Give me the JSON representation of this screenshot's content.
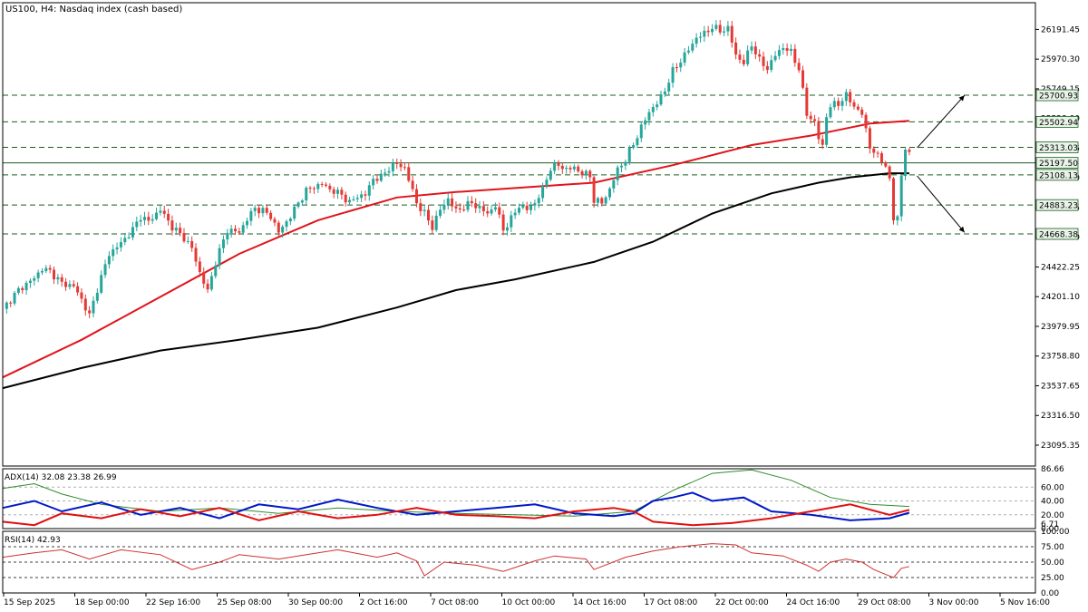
{
  "header": {
    "title": "US100, H4:  Nasdaq index (cash based)"
  },
  "colors": {
    "bull": "#26a69a",
    "bear": "#e53935",
    "ma_red": "#e0141c",
    "ma_black": "#000000",
    "adx": "#2e8b2e",
    "plus_di": "#0018c8",
    "minus_di": "#e01010",
    "rsi": "#d03030",
    "hline": "#1b5e20",
    "tag_bg": "#e8f3e8",
    "grid": "#808080"
  },
  "indicators": {
    "adx_label": "ADX(14) 32.08 23.38 26.99",
    "rsi_label": "RSI(14) 42.93"
  },
  "chart_data": [
    {
      "type": "candlestick",
      "title": "US100, H4:  Nasdaq index (cash based)",
      "ylim": [
        22940,
        26390
      ],
      "y_ticks": [
        "26191.45",
        "25970.30",
        "25749.15",
        "25528.00",
        "25306.85",
        "25085.70",
        "24864.55",
        "24643.40",
        "24422.25",
        "24201.10",
        "23979.95",
        "23758.80",
        "23537.65",
        "23316.50",
        "23095.35"
      ],
      "x_ticks": [
        "15 Sep 2025",
        "18 Sep 00:00",
        "22 Sep 16:00",
        "25 Sep 08:00",
        "30 Sep 00:00",
        "2 Oct 16:00",
        "7 Oct 08:00",
        "10 Oct 00:00",
        "14 Oct 16:00",
        "17 Oct 08:00",
        "22 Oct 00:00",
        "24 Oct 16:00",
        "29 Oct 08:00",
        "3 Nov 00:00",
        "5 Nov 16:00"
      ],
      "level_lines": [
        {
          "value": 25700.93,
          "label": "25700.93"
        },
        {
          "value": 25502.94,
          "label": "25502.94"
        },
        {
          "value": 25313.03,
          "label": "25313.03"
        },
        {
          "value": 25197.5,
          "label": "25197.50"
        },
        {
          "value": 25108.13,
          "label": "25108.13"
        },
        {
          "value": 24883.23,
          "label": "24883.23"
        },
        {
          "value": 24668.38,
          "label": "24668.38"
        }
      ],
      "close_path": [
        [
          0,
          24110
        ],
        [
          4,
          24250
        ],
        [
          8,
          24340
        ],
        [
          10,
          24410
        ],
        [
          12,
          24390
        ],
        [
          15,
          24300
        ],
        [
          18,
          24280
        ],
        [
          20,
          24180
        ],
        [
          22,
          24060
        ],
        [
          24,
          24260
        ],
        [
          27,
          24520
        ],
        [
          30,
          24600
        ],
        [
          33,
          24700
        ],
        [
          35,
          24800
        ],
        [
          37,
          24760
        ],
        [
          40,
          24850
        ],
        [
          43,
          24720
        ],
        [
          46,
          24640
        ],
        [
          48,
          24560
        ],
        [
          50,
          24380
        ],
        [
          52,
          24240
        ],
        [
          54,
          24460
        ],
        [
          57,
          24700
        ],
        [
          60,
          24680
        ],
        [
          62,
          24780
        ],
        [
          64,
          24860
        ],
        [
          66,
          24840
        ],
        [
          68,
          24800
        ],
        [
          70,
          24680
        ],
        [
          73,
          24800
        ],
        [
          75,
          24900
        ],
        [
          77,
          24990
        ],
        [
          79,
          25020
        ],
        [
          81,
          25040
        ],
        [
          83,
          25000
        ],
        [
          86,
          24960
        ],
        [
          88,
          24900
        ],
        [
          90,
          24950
        ],
        [
          92,
          24960
        ],
        [
          94,
          25080
        ],
        [
          96,
          25090
        ],
        [
          98,
          25160
        ],
        [
          100,
          25190
        ],
        [
          102,
          25160
        ],
        [
          105,
          24900
        ],
        [
          107,
          24820
        ],
        [
          109,
          24720
        ],
        [
          111,
          24850
        ],
        [
          113,
          24930
        ],
        [
          115,
          24840
        ],
        [
          117,
          24870
        ],
        [
          119,
          24900
        ],
        [
          121,
          24860
        ],
        [
          123,
          24820
        ],
        [
          125,
          24880
        ],
        [
          127,
          24700
        ],
        [
          129,
          24780
        ],
        [
          131,
          24880
        ],
        [
          133,
          24850
        ],
        [
          135,
          24900
        ],
        [
          137,
          25000
        ],
        [
          139,
          25160
        ],
        [
          141,
          25180
        ],
        [
          143,
          25150
        ],
        [
          145,
          25160
        ],
        [
          147,
          25120
        ],
        [
          149,
          25100
        ],
        [
          150,
          24920
        ],
        [
          152,
          24900
        ],
        [
          154,
          25000
        ],
        [
          156,
          25150
        ],
        [
          158,
          25220
        ],
        [
          160,
          25340
        ],
        [
          162,
          25460
        ],
        [
          164,
          25580
        ],
        [
          166,
          25640
        ],
        [
          168,
          25740
        ],
        [
          170,
          25880
        ],
        [
          172,
          25960
        ],
        [
          174,
          26040
        ],
        [
          176,
          26130
        ],
        [
          178,
          26160
        ],
        [
          180,
          26210
        ],
        [
          182,
          26180
        ],
        [
          184,
          26200
        ],
        [
          186,
          26000
        ],
        [
          188,
          25940
        ],
        [
          190,
          26080
        ],
        [
          192,
          25960
        ],
        [
          194,
          25900
        ],
        [
          196,
          26000
        ],
        [
          198,
          26060
        ],
        [
          200,
          26020
        ],
        [
          202,
          25900
        ],
        [
          204,
          25560
        ],
        [
          206,
          25500
        ],
        [
          207,
          25380
        ],
        [
          208,
          25320
        ],
        [
          209,
          25550
        ],
        [
          210,
          25620
        ],
        [
          212,
          25640
        ],
        [
          214,
          25700
        ],
        [
          216,
          25620
        ],
        [
          218,
          25560
        ],
        [
          220,
          25320
        ],
        [
          221,
          25280
        ],
        [
          222,
          25240
        ],
        [
          223,
          25220
        ],
        [
          224,
          25180
        ],
        [
          225,
          25060
        ],
        [
          226,
          24780
        ],
        [
          227,
          24800
        ],
        [
          228,
          25100
        ],
        [
          229,
          25300
        ],
        [
          230,
          25260
        ]
      ],
      "ma_red": [
        [
          0,
          23600
        ],
        [
          20,
          23880
        ],
        [
          40,
          24200
        ],
        [
          60,
          24520
        ],
        [
          80,
          24770
        ],
        [
          100,
          24940
        ],
        [
          115,
          24980
        ],
        [
          130,
          25010
        ],
        [
          150,
          25050
        ],
        [
          170,
          25180
        ],
        [
          190,
          25330
        ],
        [
          205,
          25400
        ],
        [
          215,
          25460
        ],
        [
          220,
          25490
        ],
        [
          230,
          25510
        ]
      ],
      "ma_black": [
        [
          0,
          23520
        ],
        [
          20,
          23670
        ],
        [
          40,
          23800
        ],
        [
          60,
          23880
        ],
        [
          80,
          23970
        ],
        [
          100,
          24120
        ],
        [
          115,
          24250
        ],
        [
          130,
          24330
        ],
        [
          150,
          24460
        ],
        [
          165,
          24610
        ],
        [
          180,
          24820
        ],
        [
          195,
          24970
        ],
        [
          207,
          25050
        ],
        [
          215,
          25090
        ],
        [
          225,
          25120
        ],
        [
          230,
          25120
        ]
      ],
      "arrows": [
        {
          "from": [
            232,
            25310
          ],
          "to": [
            244,
            25700
          ]
        },
        {
          "from": [
            232,
            25100
          ],
          "to": [
            244,
            24680
          ]
        }
      ]
    },
    {
      "type": "line",
      "title": "ADX(14) 32.08 23.38 26.99",
      "ylim": [
        0,
        86.66
      ],
      "y_ticks": [
        "86.66",
        "60.00",
        "40.00",
        "20.00",
        "6.71",
        "0.00"
      ],
      "series": [
        {
          "name": "ADX",
          "points": [
            [
              0,
              58
            ],
            [
              8,
              65
            ],
            [
              15,
              50
            ],
            [
              25,
              35
            ],
            [
              40,
              25
            ],
            [
              55,
              30
            ],
            [
              70,
              22
            ],
            [
              85,
              30
            ],
            [
              100,
              25
            ],
            [
              115,
              22
            ],
            [
              130,
              20
            ],
            [
              145,
              18
            ],
            [
              160,
              25
            ],
            [
              170,
              55
            ],
            [
              180,
              80
            ],
            [
              190,
              85
            ],
            [
              200,
              70
            ],
            [
              210,
              45
            ],
            [
              220,
              35
            ],
            [
              230,
              32
            ]
          ]
        },
        {
          "name": "+DI",
          "points": [
            [
              0,
              30
            ],
            [
              8,
              40
            ],
            [
              15,
              25
            ],
            [
              25,
              38
            ],
            [
              35,
              20
            ],
            [
              45,
              30
            ],
            [
              55,
              15
            ],
            [
              65,
              35
            ],
            [
              75,
              28
            ],
            [
              85,
              42
            ],
            [
              95,
              30
            ],
            [
              105,
              20
            ],
            [
              115,
              25
            ],
            [
              125,
              30
            ],
            [
              135,
              35
            ],
            [
              145,
              22
            ],
            [
              155,
              18
            ],
            [
              160,
              22
            ],
            [
              165,
              40
            ],
            [
              170,
              45
            ],
            [
              175,
              52
            ],
            [
              180,
              40
            ],
            [
              188,
              45
            ],
            [
              195,
              25
            ],
            [
              205,
              20
            ],
            [
              215,
              12
            ],
            [
              225,
              15
            ],
            [
              230,
              23
            ]
          ]
        },
        {
          "name": "-DI",
          "points": [
            [
              0,
              10
            ],
            [
              8,
              5
            ],
            [
              15,
              22
            ],
            [
              25,
              15
            ],
            [
              35,
              28
            ],
            [
              45,
              18
            ],
            [
              55,
              30
            ],
            [
              65,
              12
            ],
            [
              75,
              25
            ],
            [
              85,
              15
            ],
            [
              95,
              20
            ],
            [
              105,
              30
            ],
            [
              115,
              20
            ],
            [
              125,
              18
            ],
            [
              135,
              15
            ],
            [
              145,
              25
            ],
            [
              155,
              30
            ],
            [
              160,
              25
            ],
            [
              165,
              10
            ],
            [
              175,
              5
            ],
            [
              185,
              8
            ],
            [
              195,
              15
            ],
            [
              205,
              25
            ],
            [
              215,
              35
            ],
            [
              225,
              20
            ],
            [
              230,
              27
            ]
          ]
        }
      ]
    },
    {
      "type": "line",
      "title": "RSI(14) 42.93",
      "ylim": [
        0,
        100
      ],
      "y_ticks": [
        "100.00",
        "75.00",
        "50.00",
        "25.00",
        "0.00"
      ],
      "levels": [
        75,
        50,
        25
      ],
      "series": [
        {
          "name": "RSI",
          "points": [
            [
              0,
              58
            ],
            [
              8,
              65
            ],
            [
              15,
              70
            ],
            [
              22,
              55
            ],
            [
              30,
              70
            ],
            [
              40,
              62
            ],
            [
              48,
              38
            ],
            [
              55,
              50
            ],
            [
              60,
              62
            ],
            [
              70,
              55
            ],
            [
              80,
              65
            ],
            [
              85,
              70
            ],
            [
              95,
              58
            ],
            [
              100,
              65
            ],
            [
              105,
              52
            ],
            [
              107,
              28
            ],
            [
              112,
              50
            ],
            [
              120,
              45
            ],
            [
              127,
              35
            ],
            [
              135,
              52
            ],
            [
              140,
              60
            ],
            [
              148,
              55
            ],
            [
              150,
              38
            ],
            [
              158,
              58
            ],
            [
              165,
              68
            ],
            [
              172,
              75
            ],
            [
              180,
              80
            ],
            [
              186,
              78
            ],
            [
              190,
              65
            ],
            [
              198,
              60
            ],
            [
              204,
              45
            ],
            [
              207,
              35
            ],
            [
              210,
              50
            ],
            [
              214,
              55
            ],
            [
              218,
              50
            ],
            [
              221,
              38
            ],
            [
              224,
              30
            ],
            [
              226,
              25
            ],
            [
              228,
              40
            ],
            [
              230,
              43
            ]
          ]
        }
      ]
    }
  ]
}
